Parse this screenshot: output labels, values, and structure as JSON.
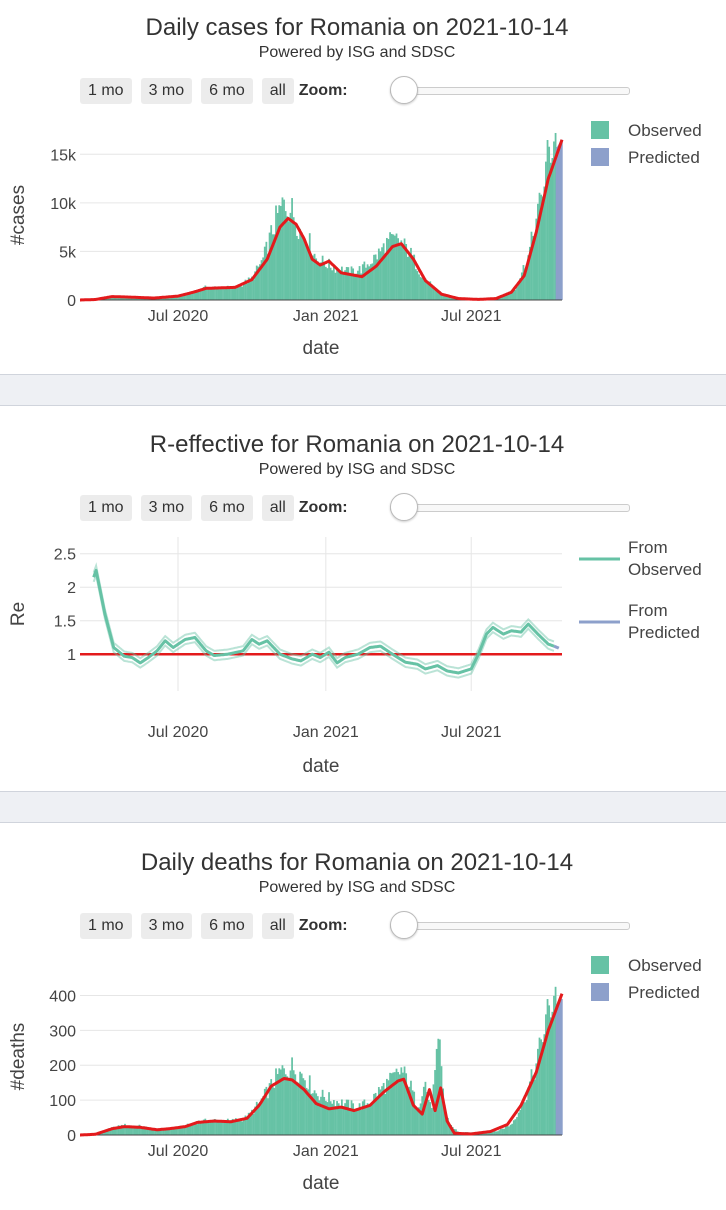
{
  "range_buttons": [
    "1 mo",
    "3 mo",
    "6 mo",
    "all"
  ],
  "zoom_label": "Zoom:",
  "chart_data": [
    {
      "type": "bar",
      "title": "Daily cases for Romania on 2021-10-14",
      "subtitle": "Powered by ISG and SDSC",
      "xlabel": "date",
      "ylabel": "#cases",
      "x_range": [
        "2020-03-01",
        "2021-10-22"
      ],
      "x_ticks": [
        {
          "date": "2020-07-01",
          "label": "Jul 2020"
        },
        {
          "date": "2021-01-01",
          "label": "Jan 2021"
        },
        {
          "date": "2021-07-01",
          "label": "Jul 2021"
        }
      ],
      "ylim": [
        0,
        17500
      ],
      "y_ticks": [
        {
          "value": 0,
          "label": "0"
        },
        {
          "value": 5000,
          "label": "5k"
        },
        {
          "value": 10000,
          "label": "10k"
        },
        {
          "value": 15000,
          "label": "15k"
        }
      ],
      "vertical_grid": false,
      "legend": [
        {
          "name": "Observed",
          "color": "#66c2a5"
        },
        {
          "name": "Predicted",
          "color": "#8da0cb"
        }
      ],
      "legend_position": "top-right",
      "observed_color": "#66c2a5",
      "predicted_color": "#8da0cb",
      "trend_color": "#e31a1c",
      "observed_knots": [
        [
          "2020-03-01",
          0
        ],
        [
          "2020-03-20",
          50
        ],
        [
          "2020-04-10",
          350
        ],
        [
          "2020-05-01",
          300
        ],
        [
          "2020-06-01",
          200
        ],
        [
          "2020-07-01",
          400
        ],
        [
          "2020-07-20",
          800
        ],
        [
          "2020-08-05",
          1300
        ],
        [
          "2020-09-10",
          1250
        ],
        [
          "2020-10-01",
          2200
        ],
        [
          "2020-10-15",
          4200
        ],
        [
          "2020-11-01",
          8500
        ],
        [
          "2020-11-10",
          10000
        ],
        [
          "2020-11-20",
          9200
        ],
        [
          "2020-12-01",
          7000
        ],
        [
          "2020-12-10",
          6300
        ],
        [
          "2020-12-20",
          4300
        ],
        [
          "2021-01-10",
          3400
        ],
        [
          "2021-01-30",
          2900
        ],
        [
          "2021-02-15",
          3200
        ],
        [
          "2021-03-05",
          4500
        ],
        [
          "2021-03-20",
          6000
        ],
        [
          "2021-04-01",
          6200
        ],
        [
          "2021-04-15",
          5000
        ],
        [
          "2021-05-01",
          2500
        ],
        [
          "2021-05-20",
          900
        ],
        [
          "2021-06-10",
          200
        ],
        [
          "2021-07-01",
          60
        ],
        [
          "2021-07-20",
          80
        ],
        [
          "2021-08-10",
          400
        ],
        [
          "2021-08-25",
          1200
        ],
        [
          "2021-09-10",
          4500
        ],
        [
          "2021-09-25",
          10000
        ],
        [
          "2021-10-05",
          15000
        ],
        [
          "2021-10-14",
          17000
        ]
      ],
      "predicted_knots": [
        [
          "2021-10-14",
          15500
        ],
        [
          "2021-10-22",
          16500
        ]
      ],
      "trend_knots": [
        [
          "2020-03-01",
          0
        ],
        [
          "2020-03-20",
          50
        ],
        [
          "2020-04-10",
          350
        ],
        [
          "2020-05-01",
          300
        ],
        [
          "2020-06-01",
          200
        ],
        [
          "2020-07-01",
          400
        ],
        [
          "2020-07-20",
          800
        ],
        [
          "2020-08-05",
          1200
        ],
        [
          "2020-09-10",
          1300
        ],
        [
          "2020-10-01",
          2100
        ],
        [
          "2020-10-20",
          4200
        ],
        [
          "2020-11-05",
          7500
        ],
        [
          "2020-11-15",
          8400
        ],
        [
          "2020-11-25",
          7800
        ],
        [
          "2020-12-05",
          6300
        ],
        [
          "2020-12-15",
          4200
        ],
        [
          "2020-12-25",
          3600
        ],
        [
          "2021-01-05",
          4000
        ],
        [
          "2021-01-20",
          2800
        ],
        [
          "2021-02-15",
          2400
        ],
        [
          "2021-03-05",
          3500
        ],
        [
          "2021-03-25",
          5500
        ],
        [
          "2021-04-05",
          5800
        ],
        [
          "2021-04-20",
          4200
        ],
        [
          "2021-05-05",
          2000
        ],
        [
          "2021-05-25",
          600
        ],
        [
          "2021-06-15",
          150
        ],
        [
          "2021-07-10",
          60
        ],
        [
          "2021-08-01",
          150
        ],
        [
          "2021-08-20",
          800
        ],
        [
          "2021-09-05",
          2500
        ],
        [
          "2021-09-20",
          7000
        ],
        [
          "2021-10-05",
          12500
        ],
        [
          "2021-10-22",
          16500
        ]
      ]
    },
    {
      "type": "line",
      "title": "R-effective for Romania on 2021-10-14",
      "subtitle": "Powered by ISG and SDSC",
      "xlabel": "date",
      "ylabel": "Re",
      "x_range": [
        "2020-03-01",
        "2021-10-22"
      ],
      "x_ticks": [
        {
          "date": "2020-07-01",
          "label": "Jul 2020"
        },
        {
          "date": "2021-01-01",
          "label": "Jan 2021"
        },
        {
          "date": "2021-07-01",
          "label": "Jul 2021"
        }
      ],
      "ylim": [
        0.6,
        2.6
      ],
      "y_ticks": [
        {
          "value": 1,
          "label": "1"
        },
        {
          "value": 1.5,
          "label": "1.5"
        },
        {
          "value": 2,
          "label": "2"
        },
        {
          "value": 2.5,
          "label": "2.5"
        }
      ],
      "vertical_grid": true,
      "reference_line": {
        "value": 1,
        "color": "#e31a1c"
      },
      "legend": [
        {
          "name": "From Observed",
          "lines": [
            "From",
            "Observed"
          ],
          "color": "#66c2a5"
        },
        {
          "name": "From Predicted",
          "lines": [
            "From",
            "Predicted"
          ],
          "color": "#8da0cb"
        }
      ],
      "legend_position": "top-right",
      "observed_color": "#66c2a5",
      "predicted_color": "#8da0cb",
      "band_offset": 0.07,
      "observed_knots": [
        [
          "2020-03-18",
          2.15
        ],
        [
          "2020-03-21",
          2.25
        ],
        [
          "2020-04-01",
          1.6
        ],
        [
          "2020-04-12",
          1.1
        ],
        [
          "2020-04-25",
          0.97
        ],
        [
          "2020-05-05",
          0.95
        ],
        [
          "2020-05-15",
          0.87
        ],
        [
          "2020-05-25",
          0.95
        ],
        [
          "2020-06-05",
          1.05
        ],
        [
          "2020-06-15",
          1.2
        ],
        [
          "2020-06-25",
          1.1
        ],
        [
          "2020-07-10",
          1.22
        ],
        [
          "2020-07-22",
          1.25
        ],
        [
          "2020-08-05",
          1.05
        ],
        [
          "2020-08-15",
          0.98
        ],
        [
          "2020-09-01",
          1.0
        ],
        [
          "2020-09-20",
          1.05
        ],
        [
          "2020-10-01",
          1.22
        ],
        [
          "2020-10-10",
          1.15
        ],
        [
          "2020-10-20",
          1.2
        ],
        [
          "2020-11-05",
          1.0
        ],
        [
          "2020-11-20",
          0.93
        ],
        [
          "2020-12-01",
          0.9
        ],
        [
          "2020-12-15",
          1.0
        ],
        [
          "2020-12-25",
          0.95
        ],
        [
          "2021-01-05",
          1.03
        ],
        [
          "2021-01-15",
          0.87
        ],
        [
          "2021-01-25",
          0.95
        ],
        [
          "2021-02-10",
          1.0
        ],
        [
          "2021-02-25",
          1.1
        ],
        [
          "2021-03-10",
          1.12
        ],
        [
          "2021-03-25",
          1.0
        ],
        [
          "2021-04-10",
          0.88
        ],
        [
          "2021-04-25",
          0.85
        ],
        [
          "2021-05-05",
          0.78
        ],
        [
          "2021-05-20",
          0.83
        ],
        [
          "2021-06-01",
          0.75
        ],
        [
          "2021-06-15",
          0.72
        ],
        [
          "2021-07-01",
          0.78
        ],
        [
          "2021-07-10",
          1.0
        ],
        [
          "2021-07-20",
          1.3
        ],
        [
          "2021-07-28",
          1.4
        ],
        [
          "2021-08-10",
          1.3
        ],
        [
          "2021-08-20",
          1.35
        ],
        [
          "2021-09-01",
          1.33
        ],
        [
          "2021-09-10",
          1.45
        ],
        [
          "2021-09-22",
          1.3
        ],
        [
          "2021-10-05",
          1.15
        ],
        [
          "2021-10-12",
          1.12
        ]
      ],
      "predicted_knots": [
        [
          "2021-10-12",
          1.12
        ],
        [
          "2021-10-18",
          1.09
        ]
      ]
    },
    {
      "type": "bar",
      "title": "Daily deaths for Romania on 2021-10-14",
      "subtitle": "Powered by ISG and SDSC",
      "xlabel": "date",
      "ylabel": "#deaths",
      "x_range": [
        "2020-03-01",
        "2021-10-22"
      ],
      "x_ticks": [
        {
          "date": "2020-07-01",
          "label": "Jul 2020"
        },
        {
          "date": "2021-01-01",
          "label": "Jan 2021"
        },
        {
          "date": "2021-07-01",
          "label": "Jul 2021"
        }
      ],
      "ylim": [
        0,
        450
      ],
      "y_ticks": [
        {
          "value": 0,
          "label": "0"
        },
        {
          "value": 100,
          "label": "100"
        },
        {
          "value": 200,
          "label": "200"
        },
        {
          "value": 300,
          "label": "300"
        },
        {
          "value": 400,
          "label": "400"
        }
      ],
      "vertical_grid": false,
      "legend": [
        {
          "name": "Observed",
          "color": "#66c2a5"
        },
        {
          "name": "Predicted",
          "color": "#8da0cb"
        }
      ],
      "legend_position": "top-right",
      "observed_color": "#66c2a5",
      "predicted_color": "#8da0cb",
      "trend_color": "#e31a1c",
      "observed_knots": [
        [
          "2020-03-01",
          0
        ],
        [
          "2020-03-20",
          2
        ],
        [
          "2020-04-10",
          20
        ],
        [
          "2020-04-25",
          28
        ],
        [
          "2020-05-15",
          25
        ],
        [
          "2020-06-05",
          15
        ],
        [
          "2020-06-20",
          18
        ],
        [
          "2020-07-10",
          25
        ],
        [
          "2020-07-25",
          38
        ],
        [
          "2020-08-15",
          42
        ],
        [
          "2020-09-05",
          40
        ],
        [
          "2020-09-25",
          50
        ],
        [
          "2020-10-10",
          90
        ],
        [
          "2020-10-25",
          140
        ],
        [
          "2020-11-05",
          180
        ],
        [
          "2020-11-20",
          195
        ],
        [
          "2020-12-05",
          170
        ],
        [
          "2020-12-20",
          120
        ],
        [
          "2021-01-10",
          100
        ],
        [
          "2021-01-25",
          90
        ],
        [
          "2021-02-10",
          80
        ],
        [
          "2021-02-25",
          95
        ],
        [
          "2021-03-10",
          130
        ],
        [
          "2021-03-25",
          160
        ],
        [
          "2021-04-05",
          185
        ],
        [
          "2021-04-15",
          150
        ],
        [
          "2021-04-25",
          80
        ],
        [
          "2021-05-05",
          150
        ],
        [
          "2021-05-12",
          70
        ],
        [
          "2021-05-22",
          270
        ],
        [
          "2021-05-30",
          60
        ],
        [
          "2021-06-05",
          30
        ],
        [
          "2021-06-15",
          8
        ],
        [
          "2021-07-10",
          6
        ],
        [
          "2021-08-01",
          10
        ],
        [
          "2021-08-20",
          30
        ],
        [
          "2021-09-05",
          100
        ],
        [
          "2021-09-20",
          200
        ],
        [
          "2021-10-01",
          320
        ],
        [
          "2021-10-14",
          420
        ]
      ],
      "predicted_knots": [
        [
          "2021-10-14",
          370
        ],
        [
          "2021-10-22",
          390
        ]
      ],
      "trend_knots": [
        [
          "2020-03-01",
          0
        ],
        [
          "2020-03-20",
          2
        ],
        [
          "2020-04-10",
          18
        ],
        [
          "2020-04-25",
          24
        ],
        [
          "2020-05-15",
          22
        ],
        [
          "2020-06-05",
          15
        ],
        [
          "2020-06-20",
          18
        ],
        [
          "2020-07-10",
          24
        ],
        [
          "2020-07-25",
          36
        ],
        [
          "2020-08-15",
          40
        ],
        [
          "2020-09-05",
          38
        ],
        [
          "2020-09-25",
          48
        ],
        [
          "2020-10-10",
          85
        ],
        [
          "2020-10-25",
          140
        ],
        [
          "2020-11-10",
          162
        ],
        [
          "2020-11-20",
          158
        ],
        [
          "2020-12-05",
          130
        ],
        [
          "2020-12-20",
          90
        ],
        [
          "2021-01-05",
          75
        ],
        [
          "2021-01-20",
          80
        ],
        [
          "2021-02-05",
          70
        ],
        [
          "2021-02-25",
          85
        ],
        [
          "2021-03-15",
          125
        ],
        [
          "2021-04-01",
          155
        ],
        [
          "2021-04-08",
          160
        ],
        [
          "2021-04-20",
          85
        ],
        [
          "2021-05-01",
          60
        ],
        [
          "2021-05-10",
          130
        ],
        [
          "2021-05-17",
          70
        ],
        [
          "2021-05-24",
          135
        ],
        [
          "2021-06-01",
          40
        ],
        [
          "2021-06-10",
          5
        ],
        [
          "2021-07-01",
          3
        ],
        [
          "2021-07-25",
          10
        ],
        [
          "2021-08-15",
          30
        ],
        [
          "2021-09-01",
          85
        ],
        [
          "2021-09-20",
          180
        ],
        [
          "2021-10-05",
          300
        ],
        [
          "2021-10-22",
          405
        ]
      ]
    }
  ]
}
